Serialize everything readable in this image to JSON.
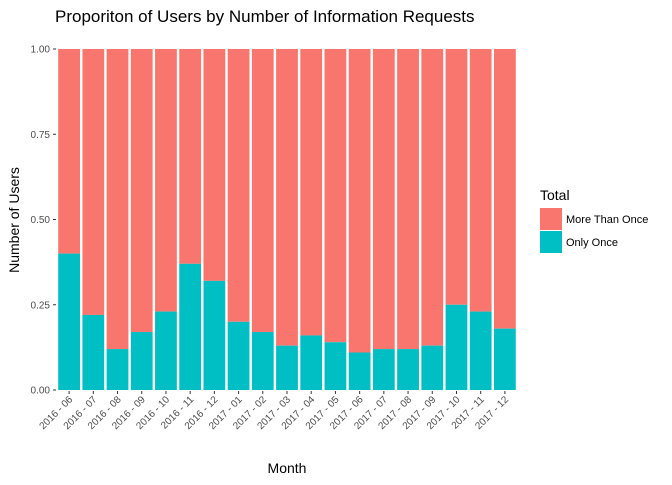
{
  "chart_data": {
    "type": "bar",
    "stacked": true,
    "title": "Proporiton of Users by Number of Information Requests",
    "xlabel": "Month",
    "ylabel": "Number of Users",
    "ylim": [
      0,
      1
    ],
    "yticks": [
      "0.00",
      "0.25",
      "0.50",
      "0.75",
      "1.00"
    ],
    "grid": false,
    "legend_position": "right",
    "legend_title": "Total",
    "categories": [
      "2016 - 06",
      "2016 - 07",
      "2016 - 08",
      "2016 - 09",
      "2016 - 10",
      "2016 - 11",
      "2016 - 12",
      "2017 - 01",
      "2017 - 02",
      "2017 - 03",
      "2017 - 04",
      "2017 - 05",
      "2017 - 06",
      "2017 - 07",
      "2017 - 08",
      "2017 - 09",
      "2017 - 10",
      "2017 - 11",
      "2017 - 12"
    ],
    "series": [
      {
        "name": "Only Once",
        "color": "#00BFC4",
        "values": [
          0.4,
          0.22,
          0.12,
          0.17,
          0.23,
          0.37,
          0.32,
          0.2,
          0.17,
          0.13,
          0.16,
          0.14,
          0.11,
          0.12,
          0.12,
          0.13,
          0.25,
          0.23,
          0.18
        ]
      },
      {
        "name": "More Than Once",
        "color": "#F8766D",
        "values": [
          0.6,
          0.78,
          0.88,
          0.83,
          0.77,
          0.63,
          0.68,
          0.8,
          0.83,
          0.87,
          0.84,
          0.86,
          0.89,
          0.88,
          0.88,
          0.87,
          0.75,
          0.77,
          0.82
        ]
      }
    ],
    "legend_order": [
      "More Than Once",
      "Only Once"
    ]
  }
}
